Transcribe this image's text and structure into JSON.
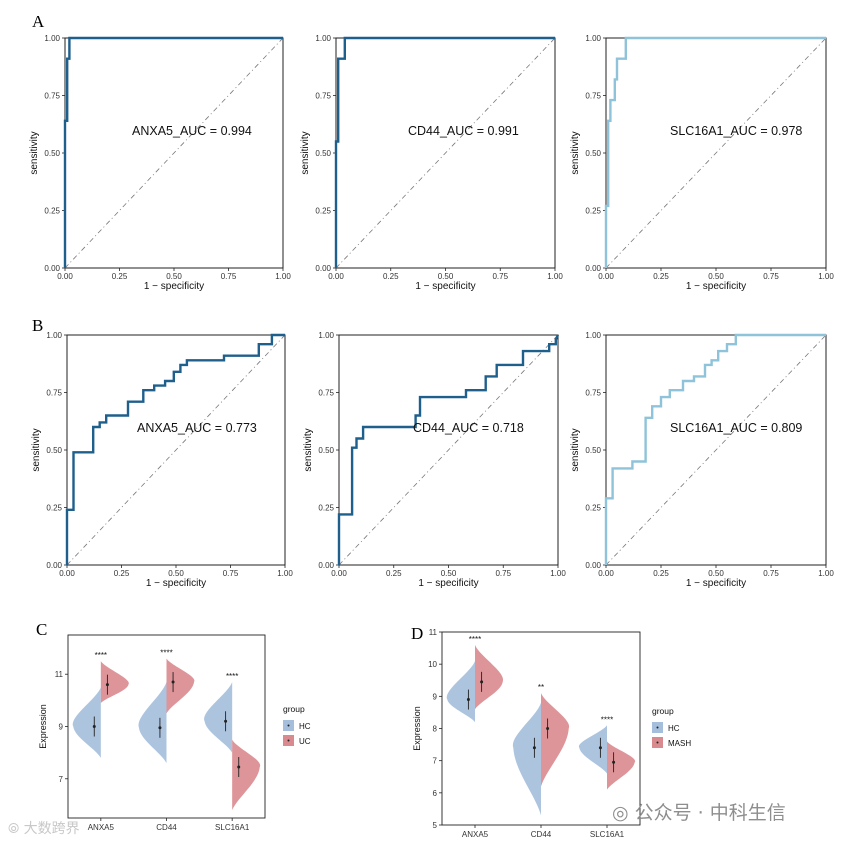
{
  "panel_labels": {
    "a": "A",
    "b": "B",
    "c": "C",
    "d": "D"
  },
  "watermark": {
    "left": "大数跨界",
    "right": "公众号 · 中科生信"
  },
  "roc_axis": {
    "xlabel": "1 − specificity",
    "ylabel": "sensitivity",
    "ticks": [
      "0.00",
      "0.25",
      "0.50",
      "0.75",
      "1.00"
    ]
  },
  "colors": {
    "anxa5": "#1e5f8c",
    "cd44": "#1e5f8c",
    "slc16a1": "#8ec3d9",
    "hc": "#a4bedb",
    "disease": "#d98a8e"
  },
  "chart_data": [
    {
      "type": "line",
      "panel": "A",
      "title": "ANXA5_AUC = 0.994",
      "xlim": [
        0,
        1
      ],
      "ylim": [
        0,
        1
      ],
      "color_key": "anxa5",
      "x": [
        0,
        0,
        0.01,
        0.01,
        0.02,
        0.02,
        0.03,
        0.03,
        1
      ],
      "y": [
        0,
        0.64,
        0.64,
        0.91,
        0.91,
        1,
        1,
        1,
        1
      ]
    },
    {
      "type": "line",
      "panel": "A",
      "title": "CD44_AUC = 0.991",
      "xlim": [
        0,
        1
      ],
      "ylim": [
        0,
        1
      ],
      "color_key": "cd44",
      "x": [
        0,
        0,
        0.01,
        0.01,
        0.02,
        0.02,
        0.04,
        0.04,
        1
      ],
      "y": [
        0,
        0.55,
        0.55,
        0.91,
        0.91,
        0.91,
        0.91,
        1,
        1
      ]
    },
    {
      "type": "line",
      "panel": "A",
      "title": "SLC16A1_AUC = 0.978",
      "xlim": [
        0,
        1
      ],
      "ylim": [
        0,
        1
      ],
      "color_key": "slc16a1",
      "x": [
        0,
        0,
        0.01,
        0.01,
        0.02,
        0.02,
        0.04,
        0.04,
        0.05,
        0.05,
        0.07,
        0.07,
        0.09,
        0.09,
        1
      ],
      "y": [
        0,
        0.27,
        0.27,
        0.64,
        0.64,
        0.73,
        0.73,
        0.82,
        0.82,
        0.91,
        0.91,
        0.91,
        0.91,
        1,
        1
      ]
    },
    {
      "type": "line",
      "panel": "B",
      "title": "ANXA5_AUC = 0.773",
      "xlim": [
        0,
        1
      ],
      "ylim": [
        0,
        1
      ],
      "color_key": "anxa5",
      "x": [
        0,
        0,
        0.03,
        0.03,
        0.12,
        0.12,
        0.15,
        0.15,
        0.18,
        0.18,
        0.28,
        0.28,
        0.35,
        0.35,
        0.4,
        0.4,
        0.45,
        0.45,
        0.49,
        0.49,
        0.52,
        0.52,
        0.55,
        0.55,
        0.72,
        0.72,
        0.88,
        0.88,
        0.94,
        0.94,
        1
      ],
      "y": [
        0,
        0.24,
        0.24,
        0.49,
        0.49,
        0.6,
        0.6,
        0.62,
        0.62,
        0.65,
        0.65,
        0.71,
        0.71,
        0.76,
        0.76,
        0.78,
        0.78,
        0.8,
        0.8,
        0.84,
        0.84,
        0.87,
        0.87,
        0.89,
        0.89,
        0.91,
        0.91,
        0.96,
        0.96,
        1,
        1
      ]
    },
    {
      "type": "line",
      "panel": "B",
      "title": "CD44_AUC = 0.718",
      "xlim": [
        0,
        1
      ],
      "ylim": [
        0,
        1
      ],
      "color_key": "cd44",
      "x": [
        0,
        0,
        0.06,
        0.06,
        0.08,
        0.08,
        0.11,
        0.11,
        0.35,
        0.35,
        0.37,
        0.37,
        0.58,
        0.58,
        0.67,
        0.67,
        0.72,
        0.72,
        0.84,
        0.84,
        0.96,
        0.96,
        0.99,
        0.99,
        1
      ],
      "y": [
        0,
        0.22,
        0.22,
        0.51,
        0.51,
        0.55,
        0.55,
        0.6,
        0.6,
        0.65,
        0.65,
        0.73,
        0.73,
        0.76,
        0.76,
        0.82,
        0.82,
        0.87,
        0.87,
        0.93,
        0.93,
        0.96,
        0.96,
        0.98,
        1
      ]
    },
    {
      "type": "line",
      "panel": "B",
      "title": "SLC16A1_AUC = 0.809",
      "xlim": [
        0,
        1
      ],
      "ylim": [
        0,
        1
      ],
      "color_key": "slc16a1",
      "x": [
        0,
        0,
        0.03,
        0.03,
        0.12,
        0.12,
        0.18,
        0.18,
        0.21,
        0.21,
        0.25,
        0.25,
        0.29,
        0.29,
        0.35,
        0.35,
        0.4,
        0.4,
        0.45,
        0.45,
        0.48,
        0.48,
        0.51,
        0.51,
        0.55,
        0.55,
        0.59,
        0.59,
        0.63,
        1
      ],
      "y": [
        0,
        0.29,
        0.29,
        0.42,
        0.42,
        0.45,
        0.45,
        0.64,
        0.64,
        0.69,
        0.69,
        0.73,
        0.73,
        0.76,
        0.76,
        0.8,
        0.8,
        0.82,
        0.82,
        0.87,
        0.87,
        0.89,
        0.89,
        0.93,
        0.93,
        0.96,
        0.96,
        1,
        1,
        1
      ]
    },
    {
      "type": "violin",
      "panel": "C",
      "ylabel": "Expression",
      "ylim": [
        5.5,
        12.5
      ],
      "yticks": [
        7,
        9,
        11
      ],
      "categories": [
        "ANXA5",
        "CD44",
        "SLC16A1"
      ],
      "legend": {
        "title": "group",
        "labels": [
          "HC",
          "UC"
        ]
      },
      "significance": [
        "****",
        "****",
        "****"
      ],
      "series": [
        {
          "name": "HC",
          "color_key": "hc",
          "medians": [
            9.0,
            8.95,
            9.2
          ],
          "ranges": [
            [
              7.8,
              10.5
            ],
            [
              7.6,
              10.7
            ],
            [
              8.0,
              10.7
            ]
          ]
        },
        {
          "name": "UC",
          "color_key": "disease",
          "medians": [
            10.6,
            10.7,
            7.45
          ],
          "ranges": [
            [
              9.9,
              11.5
            ],
            [
              9.5,
              11.6
            ],
            [
              5.8,
              8.5
            ]
          ]
        }
      ]
    },
    {
      "type": "violin",
      "panel": "D",
      "ylabel": "Expression",
      "ylim": [
        5,
        11
      ],
      "yticks": [
        5,
        6,
        7,
        8,
        9,
        10,
        11
      ],
      "categories": [
        "ANXA5",
        "CD44",
        "SLC16A1"
      ],
      "legend": {
        "title": "group",
        "labels": [
          "HC",
          "MASH"
        ]
      },
      "significance": [
        "****",
        "**",
        "****"
      ],
      "series": [
        {
          "name": "HC",
          "color_key": "hc",
          "medians": [
            8.9,
            7.4,
            7.4
          ],
          "ranges": [
            [
              8.2,
              10.1
            ],
            [
              5.3,
              8.8
            ],
            [
              6.6,
              8.1
            ]
          ]
        },
        {
          "name": "MASH",
          "color_key": "disease",
          "medians": [
            9.45,
            8.0,
            6.95
          ],
          "ranges": [
            [
              8.6,
              10.6
            ],
            [
              6.2,
              9.1
            ],
            [
              6.1,
              7.6
            ]
          ]
        }
      ]
    }
  ]
}
